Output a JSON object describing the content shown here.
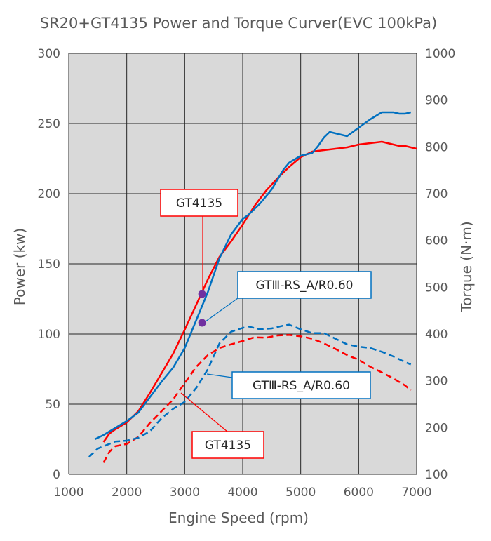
{
  "chart_data": {
    "type": "line",
    "title": "SR20+GT4135 Power and Torque Curver(EVC 100kPa)",
    "xlabel": "Engine Speed (rpm)",
    "ylabel": "Power (kw)",
    "y2label": "Torque (N·m)",
    "xlim": [
      1000,
      7000
    ],
    "ylim": [
      0,
      300
    ],
    "y2lim": [
      100,
      1000
    ],
    "xticks": [
      1000,
      2000,
      3000,
      4000,
      5000,
      6000,
      7000
    ],
    "yticks": [
      0,
      50,
      100,
      150,
      200,
      250,
      300
    ],
    "y2ticks": [
      100,
      200,
      300,
      400,
      500,
      600,
      700,
      800,
      900,
      1000
    ],
    "grid": true,
    "background": "#d9d9d9",
    "series": [
      {
        "name": "GT4135",
        "kind": "power",
        "axis": "left",
        "color": "#ff0000",
        "dashed": false,
        "x": [
          1600,
          1700,
          1800,
          2000,
          2200,
          2400,
          2600,
          2800,
          3000,
          3200,
          3400,
          3600,
          3800,
          4000,
          4200,
          4400,
          4600,
          4800,
          5000,
          5200,
          5400,
          5600,
          5800,
          6000,
          6200,
          6400,
          6500,
          6600,
          6700,
          6800,
          6900,
          7000
        ],
        "y": [
          23,
          29,
          32,
          37,
          45,
          58,
          72,
          86,
          103,
          121,
          139,
          155,
          166,
          178,
          191,
          202,
          211,
          219,
          226,
          230,
          231,
          232,
          233,
          235,
          236,
          237,
          236,
          235,
          234,
          234,
          233,
          232
        ]
      },
      {
        "name": "GTⅢ-RS_A/R0.60",
        "kind": "power",
        "axis": "left",
        "color": "#0070c0",
        "dashed": false,
        "x": [
          1450,
          1600,
          1800,
          2000,
          2200,
          2400,
          2600,
          2800,
          3000,
          3200,
          3400,
          3600,
          3800,
          4000,
          4100,
          4300,
          4500,
          4700,
          4800,
          5000,
          5200,
          5300,
          5400,
          5500,
          5600,
          5800,
          6000,
          6200,
          6400,
          6500,
          6600,
          6700,
          6800,
          6900
        ],
        "y": [
          25,
          28,
          33,
          38,
          44,
          55,
          66,
          76,
          90,
          110,
          130,
          154,
          171,
          182,
          185,
          193,
          203,
          217,
          222,
          227,
          229,
          234,
          240,
          244,
          243,
          241,
          247,
          253,
          258,
          258,
          258,
          257,
          257,
          258
        ]
      },
      {
        "name": "GT4135",
        "kind": "torque",
        "axis": "right",
        "color": "#ff0000",
        "dashed": true,
        "x": [
          1600,
          1700,
          1800,
          2000,
          2200,
          2400,
          2600,
          2800,
          3000,
          3200,
          3400,
          3600,
          3800,
          4000,
          4200,
          4400,
          4600,
          4800,
          5000,
          5200,
          5400,
          5600,
          5800,
          6000,
          6200,
          6400,
          6600,
          6800,
          6900
        ],
        "y": [
          125,
          148,
          160,
          165,
          180,
          210,
          235,
          260,
          295,
          330,
          355,
          370,
          378,
          385,
          393,
          392,
          397,
          398,
          395,
          390,
          380,
          368,
          355,
          345,
          330,
          318,
          305,
          290,
          280
        ]
      },
      {
        "name": "GTⅢ-RS_A/R0.60",
        "kind": "torque",
        "axis": "right",
        "color": "#0070c0",
        "dashed": true,
        "x": [
          1350,
          1500,
          1600,
          1800,
          2000,
          2200,
          2400,
          2600,
          2800,
          3000,
          3200,
          3400,
          3600,
          3800,
          4000,
          4100,
          4300,
          4500,
          4700,
          4800,
          5000,
          5200,
          5400,
          5600,
          5800,
          6000,
          6200,
          6400,
          6600,
          6800,
          6900
        ],
        "y": [
          137,
          155,
          160,
          170,
          172,
          178,
          192,
          220,
          240,
          255,
          285,
          325,
          380,
          405,
          413,
          416,
          410,
          412,
          418,
          420,
          410,
          402,
          402,
          390,
          378,
          373,
          370,
          362,
          352,
          340,
          335
        ]
      }
    ],
    "markers": [
      {
        "x": 3300,
        "y": 128.5,
        "color": "#7030a0",
        "axis": "left"
      },
      {
        "x": 3300,
        "y": 108,
        "color": "#7030a0",
        "axis": "left"
      }
    ],
    "annotations": [
      {
        "text": "GT4135",
        "border": "#ff0000"
      },
      {
        "text": "GTⅢ-RS_A/R0.60",
        "border": "#0070c0"
      },
      {
        "text": "GTⅢ-RS_A/R0.60",
        "border": "#0070c0"
      },
      {
        "text": "GT4135",
        "border": "#ff0000"
      }
    ]
  }
}
